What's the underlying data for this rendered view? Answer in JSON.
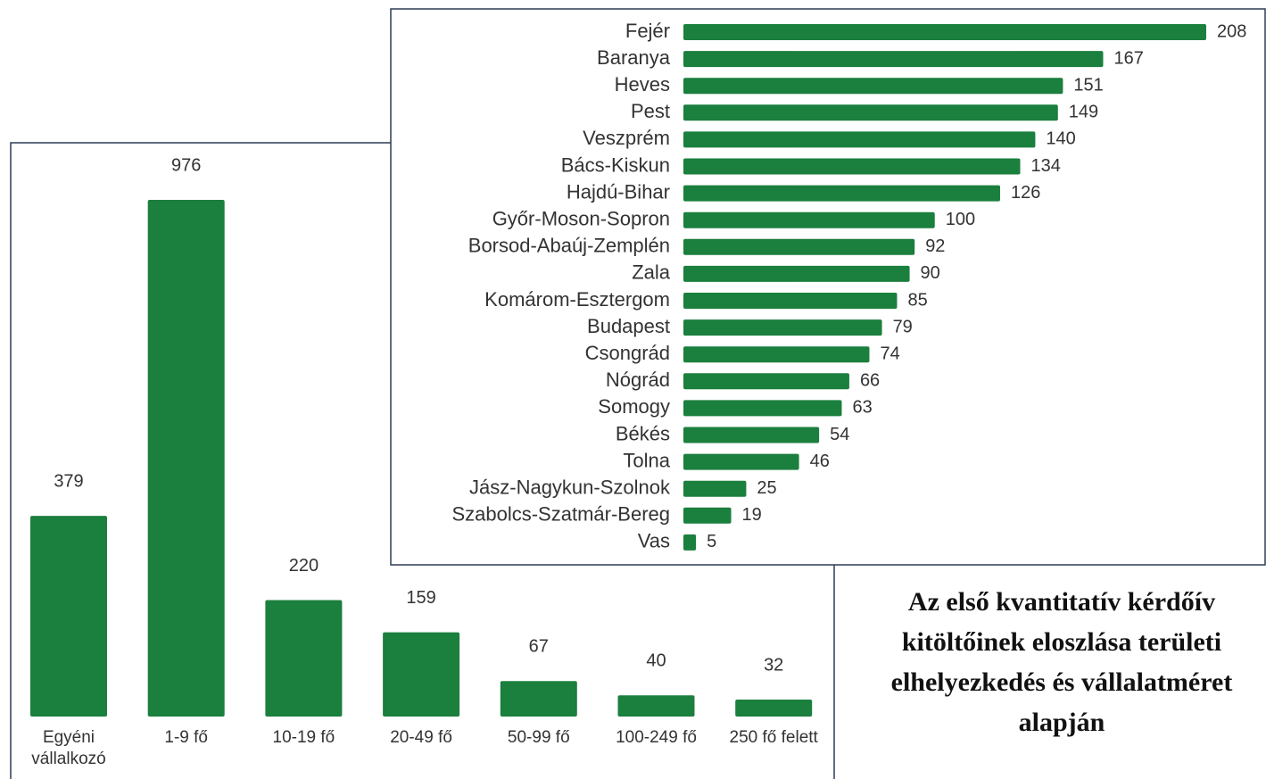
{
  "chart_data": [
    {
      "type": "bar",
      "orientation": "horizontal",
      "color": "#1b7f3e",
      "categories": [
        "Fejér",
        "Baranya",
        "Heves",
        "Pest",
        "Veszprém",
        "Bács-Kiskun",
        "Hajdú-Bihar",
        "Győr-Moson-Sopron",
        "Borsod-Abaúj-Zemplén",
        "Zala",
        "Komárom-Esztergom",
        "Budapest",
        "Csongrád",
        "Nógrád",
        "Somogy",
        "Békés",
        "Tolna",
        "Jász-Nagykun-Szolnok",
        "Szabolcs-Szatmár-Bereg",
        "Vas"
      ],
      "values": [
        208,
        167,
        151,
        149,
        140,
        134,
        126,
        100,
        92,
        90,
        85,
        79,
        74,
        66,
        63,
        54,
        46,
        25,
        19,
        5
      ]
    },
    {
      "type": "bar",
      "orientation": "vertical",
      "color": "#1b7f3e",
      "categories": [
        "Egyéni vállalkozó",
        "1-9 fő",
        "10-19 fő",
        "20-49 fő",
        "50-99 fő",
        "100-249 fő",
        "250 fő felett"
      ],
      "values": [
        379,
        976,
        220,
        159,
        67,
        40,
        32
      ]
    }
  ],
  "caption": "Az első kvantitatív kérdőív kitöltőinek eloszlása területi elhelyezkedés és vállalatméret alapján"
}
